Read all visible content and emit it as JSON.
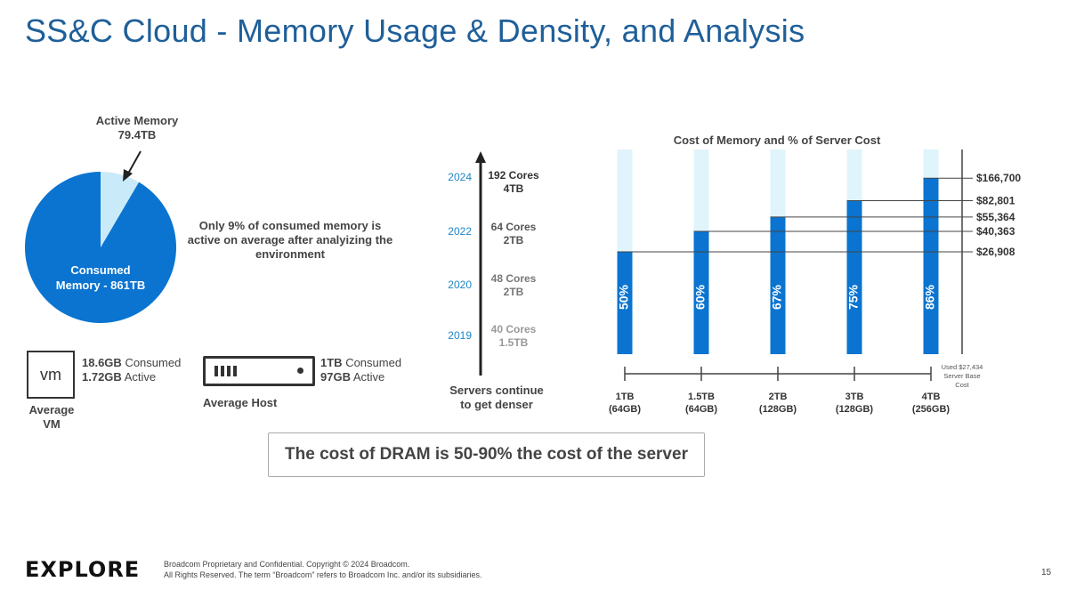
{
  "slide": {
    "title": "SS&C Cloud - Memory Usage & Density, and Analysis",
    "page_number": "15"
  },
  "pie": {
    "active_label": "Active Memory",
    "active_value": "79.4TB",
    "consumed_label_line1": "Consumed",
    "consumed_label_line2": "Memory - 861TB",
    "active_color": "#c9eaf9",
    "consumed_color": "#0a74d0",
    "note": "Only 9% of consumed memory is active on average after analyizing the environment"
  },
  "vm": {
    "icon_text": "vm",
    "consumed_value": "18.6GB",
    "consumed_word": "Consumed",
    "active_value": "1.72GB",
    "active_word": "Active",
    "caption_line1": "Average",
    "caption_line2": "VM"
  },
  "host": {
    "consumed_value": "1TB",
    "consumed_word": "Consumed",
    "active_value": "97GB",
    "active_word": "Active",
    "caption": "Average Host"
  },
  "timeline": {
    "entries": [
      {
        "year": "2024",
        "cores": "192 Cores",
        "mem": "4TB"
      },
      {
        "year": "2022",
        "cores": "64 Cores",
        "mem": "2TB"
      },
      {
        "year": "2020",
        "cores": "48 Cores",
        "mem": "2TB"
      },
      {
        "year": "2019",
        "cores": "40 Cores",
        "mem": "1.5TB"
      }
    ],
    "caption_line1": "Servers continue",
    "caption_line2": "to get denser"
  },
  "callout": {
    "text": "The cost of DRAM is 50-90% the cost of the server"
  },
  "footer": {
    "logo": "EXPLORE",
    "line1": "Broadcom Proprietary and Confidential. Copyright © 2024 Broadcom.",
    "line2": "All Rights Reserved. The term “Broadcom” refers to Broadcom Inc. and/or its subsidiaries."
  },
  "chart_data": [
    {
      "type": "pie",
      "title": "",
      "slices": [
        {
          "label": "Active Memory",
          "value": 79.4,
          "unit": "TB"
        },
        {
          "label": "Consumed Memory",
          "value": 861,
          "unit": "TB"
        }
      ]
    },
    {
      "type": "bar",
      "title": "Cost of Memory and % of Server Cost",
      "categories": [
        "1TB (64GB)",
        "1.5TB (64GB)",
        "2TB (128GB)",
        "3TB (128GB)",
        "4TB (256GB)"
      ],
      "category_lines": [
        [
          "1TB",
          "(64GB)"
        ],
        [
          "1.5TB",
          "(64GB)"
        ],
        [
          "2TB",
          "(128GB)"
        ],
        [
          "3TB",
          "(128GB)"
        ],
        [
          "4TB",
          "(256GB)"
        ]
      ],
      "values": [
        50,
        60,
        67,
        75,
        86
      ],
      "value_labels": [
        "50%",
        "60%",
        "67%",
        "75%",
        "86%"
      ],
      "cost_labels": [
        "$26,908",
        "$40,363",
        "$55,364",
        "$82,801",
        "$166,700"
      ],
      "ylim": [
        0,
        100
      ],
      "fill_color": "#0a74d0",
      "track_color": "#dff4fb",
      "base_note_line1": "Used $27,434",
      "base_note_line2": "Server Base",
      "base_note_line3": "Cost"
    }
  ]
}
